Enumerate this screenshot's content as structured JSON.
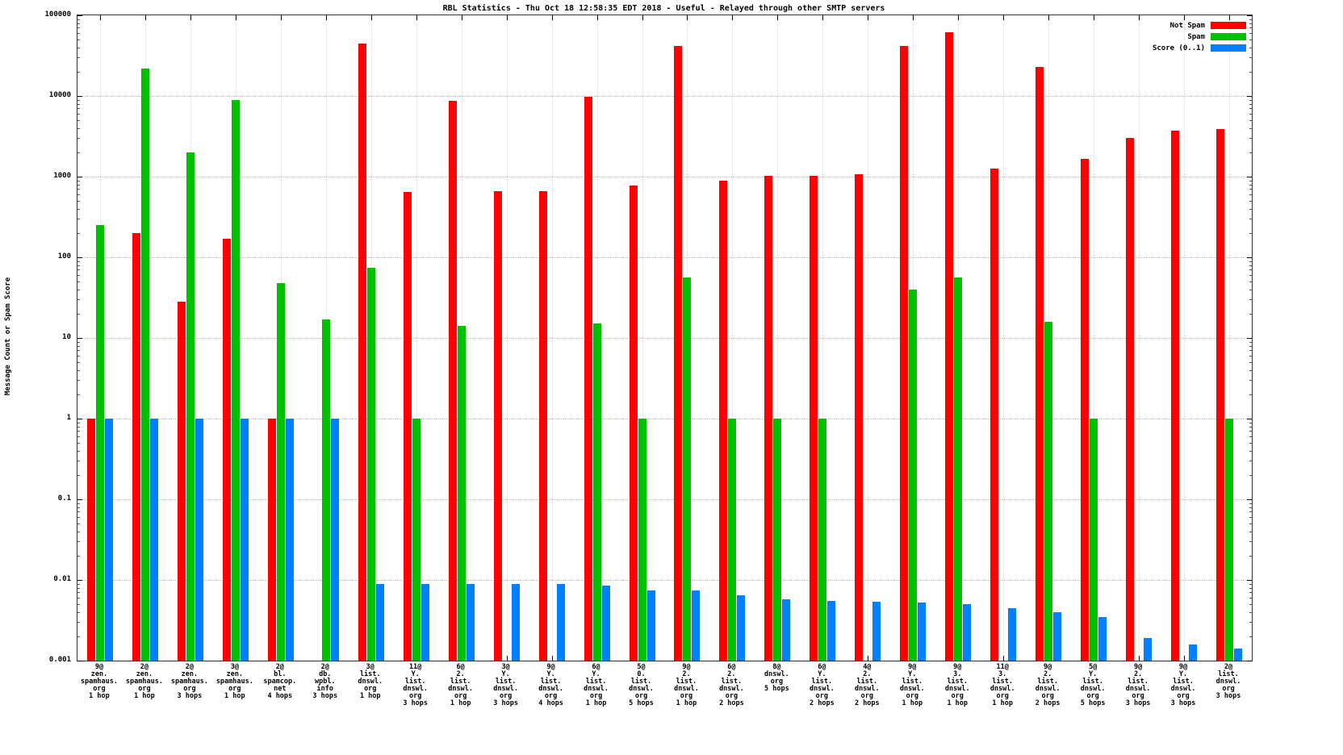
{
  "chart_data": {
    "type": "bar",
    "title": "RBL Statistics - Thu Oct 18 12:58:35 EDT 2018 - Useful - Relayed through other SMTP servers",
    "ylabel": "Message Count or Spam Score",
    "yscale": "log",
    "ylim": [
      0.001,
      100000
    ],
    "ytick_labels": [
      "100000",
      "10000",
      "1000",
      "100",
      "10",
      "1",
      "0.1",
      "0.01",
      "0.001"
    ],
    "grid": true,
    "legend_position": "top-right-inside",
    "categories": [
      [
        "9@",
        "zen.",
        "spamhaus.",
        "org",
        "1 hop"
      ],
      [
        "2@",
        "zen.",
        "spamhaus.",
        "org",
        "1 hop"
      ],
      [
        "2@",
        "zen.",
        "spamhaus.",
        "org",
        "3 hops"
      ],
      [
        "3@",
        "zen.",
        "spamhaus.",
        "org",
        "1 hop"
      ],
      [
        "2@",
        "bl.",
        "spamcop.",
        "net",
        "4 hops"
      ],
      [
        "2@",
        "db.",
        "wpbl.",
        "info",
        "3 hops"
      ],
      [
        "3@",
        "list.",
        "dnswl.",
        "org",
        "1 hop"
      ],
      [
        "11@",
        "Y.",
        "list.",
        "dnswl.",
        "org",
        "3 hops"
      ],
      [
        "6@",
        "2.",
        "list.",
        "dnswl.",
        "org",
        "1 hop"
      ],
      [
        "3@",
        "Y.",
        "list.",
        "dnswl.",
        "org",
        "3 hops"
      ],
      [
        "9@",
        "Y.",
        "list.",
        "dnswl.",
        "org",
        "4 hops"
      ],
      [
        "6@",
        "Y.",
        "list.",
        "dnswl.",
        "org",
        "1 hop"
      ],
      [
        "5@",
        "0.",
        "list.",
        "dnswl.",
        "org",
        "5 hops"
      ],
      [
        "9@",
        "2.",
        "list.",
        "dnswl.",
        "org",
        "1 hop"
      ],
      [
        "6@",
        "2.",
        "list.",
        "dnswl.",
        "org",
        "2 hops"
      ],
      [
        "8@",
        "dnswl.",
        "org",
        "5 hops"
      ],
      [
        "6@",
        "Y.",
        "list.",
        "dnswl.",
        "org",
        "2 hops"
      ],
      [
        "4@",
        "2.",
        "list.",
        "dnswl.",
        "org",
        "2 hops"
      ],
      [
        "9@",
        "Y.",
        "list.",
        "dnswl.",
        "org",
        "1 hop"
      ],
      [
        "9@",
        "3.",
        "list.",
        "dnswl.",
        "org",
        "1 hop"
      ],
      [
        "11@",
        "3.",
        "list.",
        "dnswl.",
        "org",
        "1 hop"
      ],
      [
        "9@",
        "2.",
        "list.",
        "dnswl.",
        "org",
        "2 hops"
      ],
      [
        "5@",
        "Y.",
        "list.",
        "dnswl.",
        "org",
        "5 hops"
      ],
      [
        "9@",
        "2.",
        "list.",
        "dnswl.",
        "org",
        "3 hops"
      ],
      [
        "9@",
        "Y.",
        "list.",
        "dnswl.",
        "org",
        "3 hops"
      ],
      [
        "2@",
        "list.",
        "dnswl.",
        "org",
        "3 hops"
      ]
    ],
    "series": [
      {
        "name": "Not Spam",
        "color": "#ff0000",
        "values": [
          1,
          200,
          28,
          170,
          1,
          null,
          45000,
          640,
          8800,
          660,
          660,
          9800,
          780,
          42000,
          890,
          1020,
          1030,
          1060,
          42000,
          62000,
          1260,
          23000,
          1670,
          3000,
          3700,
          3900
        ]
      },
      {
        "name": "Spam",
        "color": "#00c000",
        "values": [
          250,
          22000,
          2000,
          9000,
          48,
          17,
          75,
          1,
          14,
          null,
          null,
          15,
          1,
          56,
          1,
          1,
          1,
          null,
          40,
          56,
          null,
          16,
          1,
          null,
          null,
          1
        ]
      },
      {
        "name": "Score (0..1)",
        "color": "#0080ff",
        "values": [
          1,
          1,
          1,
          1,
          1,
          1,
          0.009,
          0.009,
          0.009,
          0.009,
          0.009,
          0.0085,
          0.0075,
          0.0075,
          0.0065,
          0.0057,
          0.0055,
          0.0054,
          0.0053,
          0.005,
          0.0045,
          0.004,
          0.0035,
          0.0019,
          0.0016,
          0.0014
        ]
      }
    ]
  },
  "colors": {
    "not_spam": "#ff0000",
    "spam": "#00c000",
    "score": "#0080ff",
    "grid": "#b3b3b3",
    "border": "#333333",
    "background": "#ffffff"
  }
}
